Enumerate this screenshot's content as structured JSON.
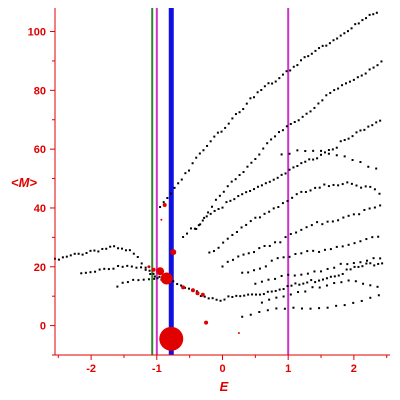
{
  "chart_data": {
    "type": "scatter",
    "xlabel": "E",
    "ylabel": "<M>",
    "xlim": [
      -2.55,
      2.55
    ],
    "ylim": [
      -10,
      108
    ],
    "x_ticks": [
      -2,
      -1,
      0,
      1,
      2
    ],
    "y_ticks": [
      0,
      20,
      40,
      60,
      80,
      100
    ],
    "colors": {
      "axis": "#e00000",
      "points": "#000000",
      "highlight": "#e00000"
    },
    "vertical_lines": [
      {
        "x": -1.07,
        "color": "#2a8a2a",
        "weight": "thin"
      },
      {
        "x": -1.0,
        "color": "#cc33cc",
        "weight": "thin"
      },
      {
        "x": -0.78,
        "color": "#1010e0",
        "weight": "thick"
      },
      {
        "x": 1.0,
        "color": "#cc33cc",
        "weight": "thin"
      }
    ],
    "highlight_points": [
      {
        "x": -0.78,
        "y": -4.5,
        "size": 12
      },
      {
        "x": -0.85,
        "y": 16,
        "size": 6
      },
      {
        "x": -0.95,
        "y": 18.5,
        "size": 4
      },
      {
        "x": -0.75,
        "y": 25,
        "size": 3
      },
      {
        "x": -0.88,
        "y": 41,
        "size": 2
      },
      {
        "x": -1.05,
        "y": 19,
        "size": 2
      },
      {
        "x": -1.12,
        "y": 20,
        "size": 1.5
      },
      {
        "x": -0.6,
        "y": 13,
        "size": 2
      },
      {
        "x": -0.45,
        "y": 12,
        "size": 2
      },
      {
        "x": -0.38,
        "y": 11,
        "size": 2
      },
      {
        "x": -0.3,
        "y": 10.5,
        "size": 2
      },
      {
        "x": -0.25,
        "y": 1,
        "size": 2
      },
      {
        "x": 0.25,
        "y": -2.5,
        "size": 1
      },
      {
        "x": -0.93,
        "y": 36,
        "size": 1
      }
    ],
    "series": [
      {
        "type": "line-dots",
        "x_from": -2.55,
        "x_to": 2.45,
        "step": 0.06,
        "points": [
          [
            -2.55,
            22
          ],
          [
            -2.0,
            25.5
          ],
          [
            -1.7,
            26.5
          ],
          [
            -1.4,
            25
          ],
          [
            -1.2,
            21
          ],
          [
            -1.0,
            17
          ],
          [
            -0.8,
            15
          ],
          [
            -0.6,
            13
          ],
          [
            -0.4,
            11
          ],
          [
            -0.2,
            9.5
          ],
          [
            0.0,
            9
          ],
          [
            0.3,
            10
          ],
          [
            0.6,
            11
          ],
          [
            0.9,
            13
          ],
          [
            1.2,
            14
          ],
          [
            1.5,
            16
          ],
          [
            1.8,
            18
          ],
          [
            2.1,
            20
          ],
          [
            2.45,
            22
          ]
        ]
      },
      {
        "type": "line-dots",
        "x_from": -2.15,
        "x_to": -0.9,
        "step": 0.07,
        "points": [
          [
            -2.15,
            18
          ],
          [
            -1.8,
            19.5
          ],
          [
            -1.5,
            20
          ],
          [
            -1.2,
            19
          ],
          [
            -0.9,
            16
          ]
        ]
      },
      {
        "type": "line-dots",
        "x_from": -1.6,
        "x_to": -1.0,
        "step": 0.08,
        "points": [
          [
            -1.6,
            14
          ],
          [
            -1.3,
            15
          ],
          [
            -1.0,
            15.5
          ]
        ]
      },
      {
        "type": "line-dots",
        "x_from": -0.95,
        "x_to": 2.4,
        "step": 0.055,
        "points": [
          [
            -0.95,
            40
          ],
          [
            -0.6,
            51
          ],
          [
            -0.2,
            62
          ],
          [
            0.2,
            72
          ],
          [
            0.6,
            80
          ],
          [
            1.0,
            87
          ],
          [
            1.4,
            93
          ],
          [
            1.8,
            99
          ],
          [
            2.1,
            103
          ],
          [
            2.4,
            107
          ]
        ]
      },
      {
        "type": "line-dots",
        "x_from": -0.4,
        "x_to": 2.45,
        "step": 0.06,
        "points": [
          [
            -0.4,
            33
          ],
          [
            0.0,
            45
          ],
          [
            0.4,
            55
          ],
          [
            0.8,
            64
          ],
          [
            1.2,
            71
          ],
          [
            1.6,
            78
          ],
          [
            2.0,
            84
          ],
          [
            2.45,
            90
          ]
        ]
      },
      {
        "type": "line-dots",
        "x_from": -0.6,
        "x_to": 2.45,
        "step": 0.06,
        "points": [
          [
            -0.6,
            30
          ],
          [
            -0.2,
            38
          ],
          [
            0.2,
            43
          ],
          [
            0.6,
            48
          ],
          [
            1.0,
            52
          ],
          [
            1.4,
            57
          ],
          [
            1.8,
            62
          ],
          [
            2.2,
            67
          ],
          [
            2.45,
            71
          ]
        ]
      },
      {
        "type": "line-dots",
        "x_from": -0.2,
        "x_to": 2.45,
        "step": 0.07,
        "points": [
          [
            -0.2,
            25
          ],
          [
            0.3,
            33
          ],
          [
            0.7,
            39
          ],
          [
            1.1,
            44
          ],
          [
            1.5,
            47
          ],
          [
            1.9,
            49
          ],
          [
            2.2,
            47
          ],
          [
            2.45,
            44
          ]
        ]
      },
      {
        "type": "line-dots",
        "x_from": 0.0,
        "x_to": 2.45,
        "step": 0.08,
        "points": [
          [
            0.0,
            20
          ],
          [
            0.5,
            26
          ],
          [
            1.0,
            30
          ],
          [
            1.5,
            35
          ],
          [
            2.0,
            38
          ],
          [
            2.45,
            41
          ]
        ]
      },
      {
        "type": "line-dots",
        "x_from": 0.3,
        "x_to": 2.45,
        "step": 0.09,
        "points": [
          [
            0.3,
            18
          ],
          [
            0.8,
            22
          ],
          [
            1.3,
            25
          ],
          [
            1.8,
            27
          ],
          [
            2.2,
            29
          ],
          [
            2.45,
            30
          ]
        ]
      },
      {
        "type": "line-dots",
        "x_from": 0.5,
        "x_to": 2.45,
        "step": 0.1,
        "points": [
          [
            0.5,
            14
          ],
          [
            1.0,
            17
          ],
          [
            1.5,
            19
          ],
          [
            2.0,
            21
          ],
          [
            2.45,
            23
          ]
        ]
      },
      {
        "type": "line-dots",
        "x_from": 0.6,
        "x_to": 2.45,
        "step": 0.11,
        "points": [
          [
            0.6,
            8
          ],
          [
            1.0,
            11
          ],
          [
            1.5,
            13
          ],
          [
            2.0,
            15
          ],
          [
            2.45,
            13
          ]
        ]
      },
      {
        "type": "line-dots",
        "x_from": 0.3,
        "x_to": 2.45,
        "step": 0.13,
        "points": [
          [
            0.3,
            3
          ],
          [
            0.8,
            5
          ],
          [
            1.3,
            6
          ],
          [
            1.8,
            7
          ],
          [
            2.45,
            10
          ]
        ]
      },
      {
        "type": "line-dots",
        "x_from": 0.9,
        "x_to": 2.45,
        "step": 0.12,
        "points": [
          [
            0.9,
            58
          ],
          [
            1.2,
            60
          ],
          [
            1.5,
            60
          ],
          [
            1.8,
            58
          ],
          [
            2.1,
            55
          ],
          [
            2.45,
            52
          ]
        ]
      }
    ]
  }
}
